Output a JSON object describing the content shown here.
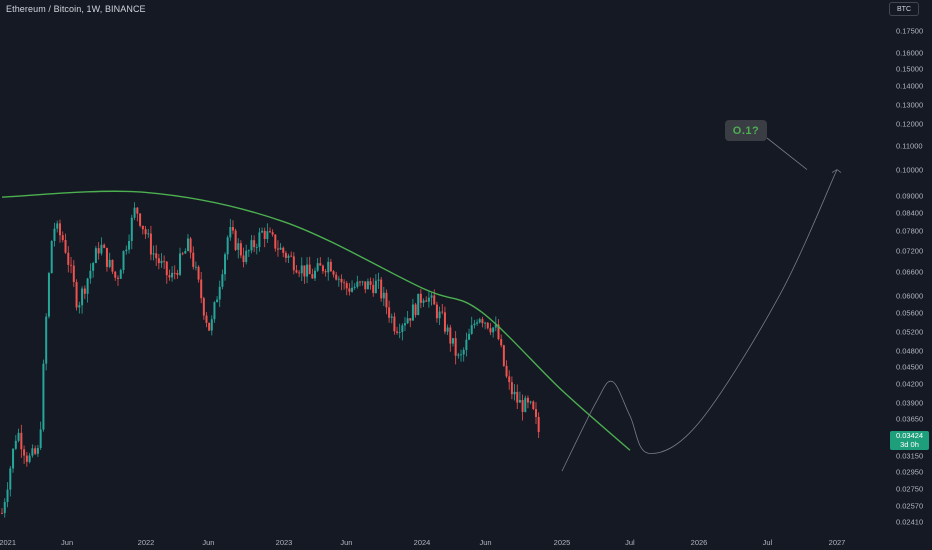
{
  "header": {
    "symbol_title": "Ethereum / Bitcoin, 1W, BINANCE",
    "currency_button": "BTC"
  },
  "annotation": {
    "callout_text": "O.1?"
  },
  "last_price": {
    "value": "0.03424",
    "countdown": "3d 0h"
  },
  "colors": {
    "background": "#151923",
    "up_candle": "#26a69a",
    "down_candle": "#ef5350",
    "arc_line": "#4caf50",
    "projection_line": "#787b86",
    "last_price_badge": "#1e9f7c"
  },
  "chart_data": {
    "type": "candlestick",
    "title": "Ethereum / Bitcoin, 1W, BINANCE",
    "symbol": "ETH/BTC",
    "interval": "1W",
    "exchange": "BINANCE",
    "y_scale": "log",
    "ylim": [
      0.024,
      0.178
    ],
    "y_ticks": [
      "0.17500",
      "0.16000",
      "0.15000",
      "0.14000",
      "0.13000",
      "0.12000",
      "0.11000",
      "0.10000",
      "0.09000",
      "0.08400",
      "0.07800",
      "0.07200",
      "0.06600",
      "0.06000",
      "0.05600",
      "0.05200",
      "0.04800",
      "0.04500",
      "0.04200",
      "0.03900",
      "0.03650",
      "0.03400",
      "0.03150",
      "0.02950",
      "0.02750",
      "0.02570",
      "0.02410"
    ],
    "x_ticks": [
      "2021",
      "Jun",
      "2022",
      "Jun",
      "2023",
      "Jun",
      "2024",
      "Jun",
      "2025",
      "Jul",
      "2026",
      "Jul",
      "2027"
    ],
    "xlim": [
      "2021-01-01",
      "2027-04-01"
    ],
    "grid": false,
    "ohlc_anchors": [
      {
        "date": "2021-01-01",
        "close": 0.025
      },
      {
        "date": "2021-02-08",
        "close": 0.035
      },
      {
        "date": "2021-03-08",
        "close": 0.031
      },
      {
        "date": "2021-04-05",
        "close": 0.032
      },
      {
        "date": "2021-04-26",
        "close": 0.06
      },
      {
        "date": "2021-05-10",
        "close": 0.08
      },
      {
        "date": "2021-06-07",
        "close": 0.075
      },
      {
        "date": "2021-07-12",
        "close": 0.058
      },
      {
        "date": "2021-09-06",
        "close": 0.074
      },
      {
        "date": "2021-10-18",
        "close": 0.064
      },
      {
        "date": "2021-12-06",
        "close": 0.086
      },
      {
        "date": "2022-01-17",
        "close": 0.072
      },
      {
        "date": "2022-03-07",
        "close": 0.064
      },
      {
        "date": "2022-04-25",
        "close": 0.074
      },
      {
        "date": "2022-06-06",
        "close": 0.056
      },
      {
        "date": "2022-06-20",
        "close": 0.052
      },
      {
        "date": "2022-08-08",
        "close": 0.078
      },
      {
        "date": "2022-09-19",
        "close": 0.07
      },
      {
        "date": "2022-11-07",
        "close": 0.078
      },
      {
        "date": "2022-12-26",
        "close": 0.072
      },
      {
        "date": "2023-03-13",
        "close": 0.065
      },
      {
        "date": "2023-05-01",
        "close": 0.069
      },
      {
        "date": "2023-06-12",
        "close": 0.062
      },
      {
        "date": "2023-09-04",
        "close": 0.063
      },
      {
        "date": "2023-10-23",
        "close": 0.053
      },
      {
        "date": "2023-12-04",
        "close": 0.056
      },
      {
        "date": "2024-01-08",
        "close": 0.061
      },
      {
        "date": "2024-02-26",
        "close": 0.054
      },
      {
        "date": "2024-04-08",
        "close": 0.046
      },
      {
        "date": "2024-05-27",
        "close": 0.056
      },
      {
        "date": "2024-07-15",
        "close": 0.052
      },
      {
        "date": "2024-08-12",
        "close": 0.042
      },
      {
        "date": "2024-09-09",
        "close": 0.039
      },
      {
        "date": "2024-10-14",
        "close": 0.038
      },
      {
        "date": "2024-11-04",
        "close": 0.0342
      }
    ],
    "resistance_arc": [
      {
        "date": "2021-01-01",
        "price": 0.0895
      },
      {
        "date": "2022-01-01",
        "price": 0.0912
      },
      {
        "date": "2023-01-01",
        "price": 0.081
      },
      {
        "date": "2024-01-01",
        "price": 0.062
      },
      {
        "date": "2024-06-01",
        "price": 0.0565
      },
      {
        "date": "2025-01-01",
        "price": 0.041
      },
      {
        "date": "2025-07-01",
        "price": 0.0322
      }
    ],
    "projection_path": [
      {
        "date": "2025-01-01",
        "price": 0.0296
      },
      {
        "date": "2025-04-01",
        "price": 0.039
      },
      {
        "date": "2025-05-15",
        "price": 0.0425
      },
      {
        "date": "2025-07-01",
        "price": 0.037
      },
      {
        "date": "2025-08-20",
        "price": 0.0318
      },
      {
        "date": "2026-01-01",
        "price": 0.036
      },
      {
        "date": "2026-08-01",
        "price": 0.06
      },
      {
        "date": "2027-01-01",
        "price": 0.1
      }
    ],
    "target_label": "O.1?",
    "target_price": 0.1,
    "last_price": 0.03424
  }
}
